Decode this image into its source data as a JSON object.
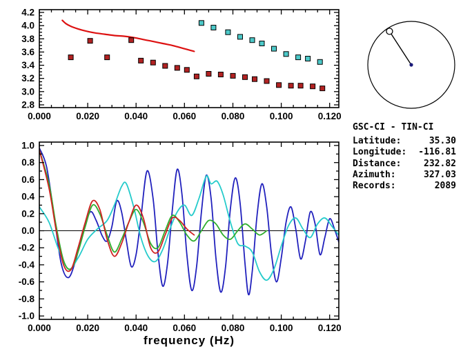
{
  "info_panel": {
    "title": "GSC-CI - TIN-CI",
    "rows": [
      {
        "label": "Latitude:",
        "value": "35.30"
      },
      {
        "label": "Longitude:",
        "value": "-116.81"
      },
      {
        "label": "Distance:",
        "value": "232.82"
      },
      {
        "label": "Azimuth:",
        "value": "327.03"
      },
      {
        "label": "Records:",
        "value": "2089"
      }
    ]
  },
  "compass": {
    "azimuth_deg": 327.03,
    "ring_color": "#000000",
    "pointer_color": "#000000",
    "center_dot_color": "#1a1a7a",
    "marker_fill": "#ffffff",
    "marker_edge": "#000000"
  },
  "chart_data": [
    {
      "type": "scatter",
      "title": "",
      "xlabel": "",
      "ylabel": "",
      "grid": false,
      "xlim": [
        0,
        0.1238
      ],
      "ylim": [
        2.758,
        4.242
      ],
      "x_ticks": [
        0,
        0.02,
        0.04,
        0.06,
        0.08,
        0.1,
        0.12
      ],
      "x_tick_labels": [
        "0.000",
        "0.020",
        "0.040",
        "0.060",
        "0.080",
        "0.100",
        "0.120"
      ],
      "x_minor_step": 0.005,
      "y_ticks": [
        2.8,
        3.0,
        3.2,
        3.4,
        3.6,
        3.8,
        4.0,
        4.2
      ],
      "y_tick_labels": [
        "2.8",
        "3.0",
        "3.2",
        "3.4",
        "3.6",
        "3.8",
        "4.0",
        "4.2"
      ],
      "y_minor_step": 0.05,
      "series": [
        {
          "name": "reference-dispersion-curve",
          "kind": "line",
          "color": "#dd1111",
          "width": 2.2,
          "points": [
            [
              0.0095,
              4.08
            ],
            [
              0.011,
              4.03
            ],
            [
              0.013,
              3.99
            ],
            [
              0.016,
              3.95
            ],
            [
              0.019,
              3.92
            ],
            [
              0.023,
              3.89
            ],
            [
              0.027,
              3.87
            ],
            [
              0.031,
              3.85
            ],
            [
              0.035,
              3.84
            ],
            [
              0.039,
              3.82
            ],
            [
              0.043,
              3.79
            ],
            [
              0.047,
              3.76
            ],
            [
              0.051,
              3.73
            ],
            [
              0.055,
              3.7
            ],
            [
              0.058,
              3.67
            ],
            [
              0.061,
              3.64
            ],
            [
              0.064,
              3.61
            ]
          ]
        },
        {
          "name": "station-dispersion-points",
          "kind": "square",
          "color": "#b22222",
          "edge": "#000000",
          "points": [
            [
              0.013,
              3.52
            ],
            [
              0.021,
              3.77
            ],
            [
              0.028,
              3.52
            ],
            [
              0.038,
              3.78
            ],
            [
              0.042,
              3.47
            ],
            [
              0.047,
              3.44
            ],
            [
              0.052,
              3.39
            ],
            [
              0.057,
              3.36
            ],
            [
              0.061,
              3.33
            ],
            [
              0.065,
              3.23
            ],
            [
              0.07,
              3.27
            ],
            [
              0.075,
              3.26
            ],
            [
              0.08,
              3.24
            ],
            [
              0.085,
              3.22
            ],
            [
              0.089,
              3.19
            ],
            [
              0.094,
              3.16
            ],
            [
              0.099,
              3.1
            ],
            [
              0.104,
              3.09
            ],
            [
              0.108,
              3.09
            ],
            [
              0.113,
              3.08
            ],
            [
              0.117,
              3.05
            ]
          ]
        },
        {
          "name": "cluster-dispersion-points",
          "kind": "square",
          "color": "#4cc8c8",
          "edge": "#000000",
          "points": [
            [
              0.067,
              4.04
            ],
            [
              0.072,
              3.97
            ],
            [
              0.078,
              3.9
            ],
            [
              0.083,
              3.83
            ],
            [
              0.088,
              3.78
            ],
            [
              0.092,
              3.73
            ],
            [
              0.097,
              3.65
            ],
            [
              0.102,
              3.57
            ],
            [
              0.107,
              3.52
            ],
            [
              0.111,
              3.5
            ],
            [
              0.116,
              3.45
            ]
          ]
        }
      ]
    },
    {
      "type": "line",
      "title": "",
      "xlabel": "frequency (Hz)",
      "ylabel": "",
      "grid": false,
      "zero_line": true,
      "xlim": [
        0,
        0.1238
      ],
      "ylim": [
        -1.04,
        1.04
      ],
      "x_ticks": [
        0,
        0.02,
        0.04,
        0.06,
        0.08,
        0.1,
        0.12
      ],
      "x_tick_labels": [
        "0.000",
        "0.020",
        "0.040",
        "0.060",
        "0.080",
        "0.100",
        "0.120"
      ],
      "x_minor_step": 0.005,
      "y_ticks": [
        -1.0,
        -0.8,
        -0.6,
        -0.4,
        -0.2,
        0.0,
        0.2,
        0.4,
        0.6,
        0.8,
        1.0
      ],
      "y_tick_labels": [
        "-1.0",
        "-0.8",
        "-0.6",
        "-0.4",
        "-0.2",
        "0.0",
        "0.2",
        "0.4",
        "0.6",
        "0.8",
        "1.0"
      ],
      "y_minor_step": 0.1,
      "series": [
        {
          "name": "waveform-blue",
          "kind": "line",
          "color": "#2121bd",
          "width": 1.8,
          "points": [
            [
              0,
              0.97
            ],
            [
              0.003,
              0.75
            ],
            [
              0.006,
              0.2
            ],
            [
              0.009,
              -0.38
            ],
            [
              0.012,
              -0.55
            ],
            [
              0.015,
              -0.35
            ],
            [
              0.018,
              -0.02
            ],
            [
              0.021,
              0.22
            ],
            [
              0.0235,
              0.12
            ],
            [
              0.026,
              -0.06
            ],
            [
              0.028,
              -0.12
            ],
            [
              0.03,
              0.05
            ],
            [
              0.032,
              0.35
            ],
            [
              0.034,
              0.22
            ],
            [
              0.036,
              -0.12
            ],
            [
              0.038,
              -0.42
            ],
            [
              0.04,
              -0.28
            ],
            [
              0.042,
              0.15
            ],
            [
              0.0445,
              0.7
            ],
            [
              0.047,
              0.38
            ],
            [
              0.049,
              -0.25
            ],
            [
              0.051,
              -0.65
            ],
            [
              0.053,
              -0.38
            ],
            [
              0.055,
              0.25
            ],
            [
              0.057,
              0.72
            ],
            [
              0.059,
              0.42
            ],
            [
              0.061,
              -0.28
            ],
            [
              0.063,
              -0.7
            ],
            [
              0.065,
              -0.42
            ],
            [
              0.067,
              0.22
            ],
            [
              0.069,
              0.65
            ],
            [
              0.071,
              0.38
            ],
            [
              0.073,
              -0.32
            ],
            [
              0.075,
              -0.72
            ],
            [
              0.077,
              -0.42
            ],
            [
              0.079,
              0.26
            ],
            [
              0.081,
              0.62
            ],
            [
              0.083,
              0.32
            ],
            [
              0.085,
              -0.38
            ],
            [
              0.0865,
              -0.75
            ],
            [
              0.088,
              -0.48
            ],
            [
              0.09,
              0.18
            ],
            [
              0.092,
              0.55
            ],
            [
              0.094,
              0.28
            ],
            [
              0.096,
              -0.28
            ],
            [
              0.098,
              -0.6
            ],
            [
              0.1,
              -0.32
            ],
            [
              0.102,
              0.1
            ],
            [
              0.104,
              0.28
            ],
            [
              0.106,
              0.02
            ],
            [
              0.108,
              -0.33
            ],
            [
              0.11,
              -0.12
            ],
            [
              0.112,
              0.22
            ],
            [
              0.114,
              0.08
            ],
            [
              0.116,
              -0.28
            ],
            [
              0.118,
              -0.08
            ],
            [
              0.12,
              0.14
            ],
            [
              0.122,
              0.02
            ],
            [
              0.124,
              -0.15
            ]
          ]
        },
        {
          "name": "waveform-cyan",
          "kind": "line",
          "color": "#25cbcb",
          "width": 1.8,
          "points": [
            [
              0,
              0.28
            ],
            [
              0.004,
              0.1
            ],
            [
              0.008,
              -0.22
            ],
            [
              0.012,
              -0.45
            ],
            [
              0.016,
              -0.32
            ],
            [
              0.02,
              -0.1
            ],
            [
              0.024,
              0.02
            ],
            [
              0.028,
              0.12
            ],
            [
              0.031,
              0.3
            ],
            [
              0.034,
              0.52
            ],
            [
              0.036,
              0.55
            ],
            [
              0.039,
              0.28
            ],
            [
              0.042,
              -0.08
            ],
            [
              0.045,
              -0.3
            ],
            [
              0.048,
              -0.36
            ],
            [
              0.051,
              -0.22
            ],
            [
              0.054,
              0.02
            ],
            [
              0.057,
              0.22
            ],
            [
              0.06,
              0.3
            ],
            [
              0.063,
              0.18
            ],
            [
              0.066,
              0.38
            ],
            [
              0.069,
              0.64
            ],
            [
              0.071,
              0.55
            ],
            [
              0.0735,
              0.58
            ],
            [
              0.076,
              0.42
            ],
            [
              0.079,
              0.1
            ],
            [
              0.082,
              -0.15
            ],
            [
              0.085,
              -0.18
            ],
            [
              0.088,
              -0.25
            ],
            [
              0.091,
              -0.48
            ],
            [
              0.094,
              -0.58
            ],
            [
              0.097,
              -0.45
            ],
            [
              0.1,
              -0.18
            ],
            [
              0.103,
              0.06
            ],
            [
              0.106,
              0.15
            ],
            [
              0.109,
              0.02
            ],
            [
              0.112,
              -0.08
            ],
            [
              0.115,
              0.08
            ],
            [
              0.118,
              0.15
            ],
            [
              0.121,
              0.05
            ],
            [
              0.124,
              -0.06
            ]
          ]
        },
        {
          "name": "waveform-green",
          "kind": "line",
          "color": "#2fae2f",
          "width": 1.8,
          "points": [
            [
              0,
              0.95
            ],
            [
              0.004,
              0.55
            ],
            [
              0.007,
              0.05
            ],
            [
              0.01,
              -0.35
            ],
            [
              0.013,
              -0.45
            ],
            [
              0.016,
              -0.25
            ],
            [
              0.019,
              0.05
            ],
            [
              0.022,
              0.3
            ],
            [
              0.025,
              0.2
            ],
            [
              0.028,
              -0.05
            ],
            [
              0.031,
              -0.25
            ],
            [
              0.034,
              -0.1
            ],
            [
              0.037,
              0.1
            ],
            [
              0.04,
              0.25
            ],
            [
              0.043,
              0.1
            ],
            [
              0.046,
              -0.15
            ],
            [
              0.049,
              -0.2
            ],
            [
              0.052,
              0.0
            ],
            [
              0.055,
              0.18
            ],
            [
              0.058,
              0.1
            ],
            [
              0.061,
              -0.05
            ],
            [
              0.064,
              -0.12
            ],
            [
              0.067,
              0.0
            ],
            [
              0.07,
              0.12
            ],
            [
              0.073,
              0.08
            ],
            [
              0.076,
              -0.05
            ],
            [
              0.079,
              -0.1
            ],
            [
              0.082,
              0.0
            ],
            [
              0.085,
              0.08
            ],
            [
              0.088,
              0.02
            ],
            [
              0.091,
              -0.05
            ],
            [
              0.094,
              0.0
            ]
          ]
        },
        {
          "name": "waveform-red",
          "kind": "line",
          "color": "#d02222",
          "width": 1.8,
          "points": [
            [
              0,
              0.95
            ],
            [
              0.004,
              0.5
            ],
            [
              0.007,
              0.0
            ],
            [
              0.01,
              -0.4
            ],
            [
              0.013,
              -0.46
            ],
            [
              0.016,
              -0.2
            ],
            [
              0.019,
              0.1
            ],
            [
              0.022,
              0.35
            ],
            [
              0.025,
              0.25
            ],
            [
              0.028,
              -0.1
            ],
            [
              0.031,
              -0.3
            ],
            [
              0.034,
              -0.15
            ],
            [
              0.037,
              0.1
            ],
            [
              0.04,
              0.3
            ],
            [
              0.043,
              0.15
            ],
            [
              0.046,
              -0.2
            ],
            [
              0.049,
              -0.25
            ],
            [
              0.052,
              -0.05
            ],
            [
              0.055,
              0.15
            ],
            [
              0.058,
              0.12
            ],
            [
              0.061,
              0.02
            ],
            [
              0.064,
              -0.05
            ]
          ]
        }
      ]
    }
  ]
}
